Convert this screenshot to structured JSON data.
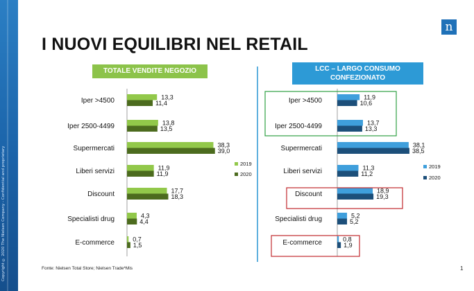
{
  "page": {
    "title": "I NUOVI EQUILIBRI NEL RETAIL",
    "copyright": "Copyright © 2020 The Nielsen Company - Confidential and proprietary",
    "logo_glyph": "n",
    "footer": "Fonte: Nielsen Total Store; Nielsen Trade*Mis",
    "page_number": "1",
    "colors": {
      "green_2019": "#92c84a",
      "green_2020": "#4c6b1e",
      "blue_2019": "#3f9fdc",
      "blue_2020": "#1c4f7a",
      "highlight_green": "#2ea043",
      "highlight_red": "#c0282d"
    }
  },
  "chart_data": [
    {
      "type": "bar",
      "title": "TOTALE VENDITE NEGOZIO",
      "categories": [
        "Iper >4500",
        "Iper 2500-4499",
        "Supermercati",
        "Liberi servizi",
        "Discount",
        "Specialisti drug",
        "E-commerce"
      ],
      "series": [
        {
          "name": "2019",
          "values": [
            13.3,
            13.8,
            38.3,
            11.9,
            17.7,
            4.3,
            0.7
          ],
          "labels": [
            "13,3",
            "13,8",
            "38,3",
            "11,9",
            "17,7",
            "4,3",
            "0,7"
          ]
        },
        {
          "name": "2020",
          "values": [
            11.4,
            13.5,
            39.0,
            11.9,
            18.3,
            4.4,
            1.5
          ],
          "labels": [
            "11,4",
            "13,5",
            "39,0",
            "11,9",
            "18,3",
            "4,4",
            "1,5"
          ]
        }
      ],
      "orientation": "horizontal",
      "legend": "right"
    },
    {
      "type": "bar",
      "title": "LCC – LARGO CONSUMO CONFEZIONATO",
      "categories": [
        "Iper >4500",
        "Iper 2500-4499",
        "Supermercati",
        "Liberi servizi",
        "Discount",
        "Specialisti drug",
        "E-commerce"
      ],
      "series": [
        {
          "name": "2019",
          "values": [
            11.9,
            13.7,
            38.1,
            11.3,
            18.9,
            5.2,
            0.8
          ],
          "labels": [
            "11,9",
            "13,7",
            "38,1",
            "11,3",
            "18,9",
            "5,2",
            "0,8"
          ]
        },
        {
          "name": "2020",
          "values": [
            10.6,
            13.3,
            38.5,
            11.2,
            19.3,
            5.2,
            1.9
          ],
          "labels": [
            "10,6",
            "13,3",
            "38,5",
            "11,2",
            "19,3",
            "5,2",
            "1,9"
          ]
        }
      ],
      "orientation": "horizontal",
      "legend": "right",
      "highlights": [
        {
          "categories": [
            "Iper >4500",
            "Iper 2500-4499"
          ],
          "color": "green"
        },
        {
          "categories": [
            "Discount"
          ],
          "color": "red"
        },
        {
          "categories": [
            "E-commerce"
          ],
          "color": "red"
        }
      ]
    }
  ]
}
